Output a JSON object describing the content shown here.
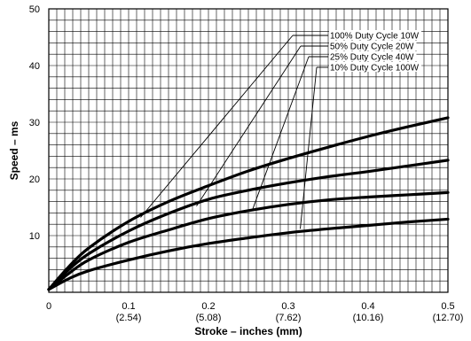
{
  "chart_data": {
    "type": "line",
    "title": "",
    "xlabel": "Stroke – inches (mm)",
    "ylabel": "Speed – ms",
    "xlim": [
      0,
      0.5
    ],
    "ylim": [
      0,
      50
    ],
    "grid": true,
    "x_ticks": [
      {
        "value": 0,
        "label": "0",
        "sublabel": ""
      },
      {
        "value": 0.1,
        "label": "0.1",
        "sublabel": "(2.54)"
      },
      {
        "value": 0.2,
        "label": "0.2",
        "sublabel": "(5.08)"
      },
      {
        "value": 0.3,
        "label": "0.3",
        "sublabel": "(7.62)"
      },
      {
        "value": 0.4,
        "label": "0.4",
        "sublabel": "(10.16)"
      },
      {
        "value": 0.5,
        "label": "0.5",
        "sublabel": "(12.70)"
      }
    ],
    "y_ticks": [
      10,
      20,
      30,
      40,
      50
    ],
    "legend_placement": "top-right, with leader lines to curves",
    "series": [
      {
        "name": "100% Duty Cycle 10W",
        "x": [
          0,
          0.025,
          0.05,
          0.1,
          0.15,
          0.2,
          0.25,
          0.3,
          0.35,
          0.4,
          0.45,
          0.5
        ],
        "y": [
          0.5,
          4.5,
          7.8,
          12.5,
          16.0,
          18.8,
          21.4,
          23.6,
          25.6,
          27.5,
          29.2,
          30.8
        ],
        "label_anchor": {
          "x": 0.115,
          "y": 13.2
        }
      },
      {
        "name": "50% Duty Cycle 20W",
        "x": [
          0,
          0.025,
          0.05,
          0.1,
          0.15,
          0.2,
          0.25,
          0.3,
          0.35,
          0.4,
          0.45,
          0.5
        ],
        "y": [
          0.5,
          4.0,
          6.8,
          10.8,
          13.9,
          16.4,
          18.0,
          19.3,
          20.4,
          21.3,
          22.3,
          23.3
        ],
        "label_anchor": {
          "x": 0.185,
          "y": 15.2
        }
      },
      {
        "name": "25% Duty Cycle 40W",
        "x": [
          0,
          0.025,
          0.05,
          0.1,
          0.15,
          0.2,
          0.25,
          0.3,
          0.35,
          0.4,
          0.45,
          0.5
        ],
        "y": [
          0.5,
          3.3,
          5.7,
          8.8,
          11.0,
          13.0,
          14.4,
          15.5,
          16.3,
          16.8,
          17.2,
          17.6
        ],
        "label_anchor": {
          "x": 0.255,
          "y": 14.5
        }
      },
      {
        "name": "10% Duty Cycle 100W",
        "x": [
          0,
          0.025,
          0.05,
          0.1,
          0.15,
          0.2,
          0.25,
          0.3,
          0.35,
          0.4,
          0.45,
          0.5
        ],
        "y": [
          0.5,
          2.4,
          3.8,
          5.7,
          7.3,
          8.6,
          9.6,
          10.5,
          11.2,
          11.8,
          12.4,
          12.9
        ],
        "label_anchor": {
          "x": 0.315,
          "y": 11.2
        }
      }
    ]
  },
  "colors": {
    "line": "#000000",
    "grid": "#000000",
    "background": "#ffffff"
  }
}
